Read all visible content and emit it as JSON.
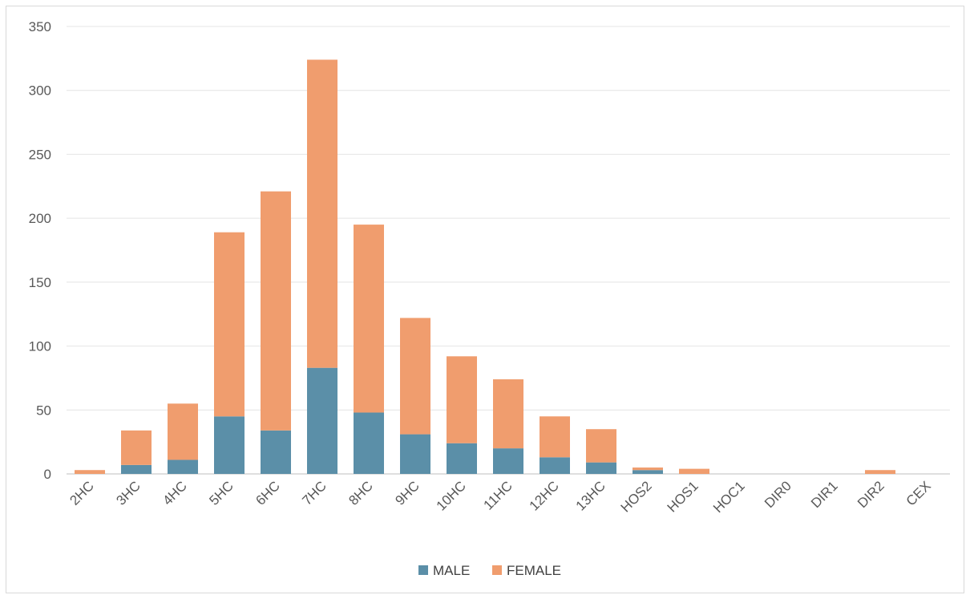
{
  "chart_data": {
    "type": "bar",
    "stacked": true,
    "categories": [
      "2HC",
      "3HC",
      "4HC",
      "5HC",
      "6HC",
      "7HC",
      "8HC",
      "9HC",
      "10HC",
      "11HC",
      "12HC",
      "13HC",
      "HOS2",
      "HOS1",
      "HOC1",
      "DIR0",
      "DIR1",
      "DIR2",
      "CEX"
    ],
    "series": [
      {
        "name": "MALE",
        "color": "#5b8fa8",
        "values": [
          0,
          7,
          11,
          45,
          34,
          83,
          48,
          31,
          24,
          20,
          13,
          9,
          3,
          0,
          0,
          0,
          0,
          0,
          0
        ]
      },
      {
        "name": "FEMALE",
        "color": "#f09d6e",
        "values": [
          3,
          27,
          44,
          144,
          187,
          241,
          147,
          91,
          68,
          54,
          32,
          26,
          2,
          4,
          0,
          0,
          0,
          3,
          0
        ]
      }
    ],
    "ylim": [
      0,
      350
    ],
    "yticks": [
      0,
      50,
      100,
      150,
      200,
      250,
      300,
      350
    ],
    "grid": true,
    "legend": "bottom",
    "title": "",
    "xlabel": "",
    "ylabel": ""
  }
}
